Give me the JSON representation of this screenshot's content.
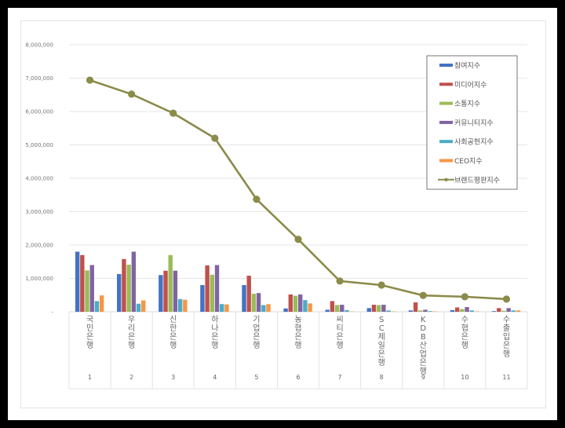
{
  "chart_data": {
    "type": "bar+line",
    "title": "",
    "xlabel": "",
    "ylabel": "",
    "ylim": [
      0,
      8000000
    ],
    "yticks": [
      "-",
      "1,000,000",
      "2,000,000",
      "3,000,000",
      "4,000,000",
      "5,000,000",
      "6,000,000",
      "7,000,000",
      "8,000,000"
    ],
    "grid": true,
    "legend_position": "right-top",
    "categories": [
      "국민은행",
      "우리은행",
      "신한은행",
      "하나은행",
      "기업은행",
      "농협은행",
      "씨티은행",
      "SC제일은행",
      "KDB산업은행",
      "수협은행",
      "수출입은행"
    ],
    "ranks": [
      "1",
      "2",
      "3",
      "4",
      "5",
      "6",
      "7",
      "8",
      "9",
      "10",
      "11"
    ],
    "series": [
      {
        "name": "참여지수",
        "type": "bar",
        "color": "#4472C4",
        "values": [
          1800000,
          1130000,
          1100000,
          800000,
          800000,
          100000,
          60000,
          110000,
          40000,
          50000,
          20000
        ]
      },
      {
        "name": "미디어지수",
        "type": "bar",
        "color": "#C0504D",
        "values": [
          1700000,
          1580000,
          1230000,
          1390000,
          1080000,
          520000,
          320000,
          210000,
          280000,
          130000,
          110000
        ]
      },
      {
        "name": "소통지수",
        "type": "bar",
        "color": "#9BBB59",
        "values": [
          1240000,
          1410000,
          1700000,
          1110000,
          540000,
          480000,
          200000,
          200000,
          40000,
          80000,
          30000
        ]
      },
      {
        "name": "커뮤니티지수",
        "type": "bar",
        "color": "#8064A2",
        "values": [
          1400000,
          1800000,
          1230000,
          1400000,
          560000,
          520000,
          210000,
          210000,
          60000,
          140000,
          110000
        ]
      },
      {
        "name": "사회공헌지수",
        "type": "bar",
        "color": "#4BACC6",
        "values": [
          320000,
          240000,
          380000,
          230000,
          200000,
          350000,
          50000,
          40000,
          20000,
          40000,
          40000
        ]
      },
      {
        "name": "CEO지수",
        "type": "bar",
        "color": "#F79646",
        "values": [
          490000,
          340000,
          360000,
          220000,
          230000,
          250000,
          10000,
          10000,
          10000,
          10000,
          40000
        ]
      },
      {
        "name": "브랜드평판지수",
        "type": "line",
        "color": "#8B8B4A",
        "values": [
          6940000,
          6520000,
          5950000,
          5200000,
          3370000,
          2170000,
          920000,
          800000,
          490000,
          450000,
          380000
        ]
      }
    ]
  }
}
